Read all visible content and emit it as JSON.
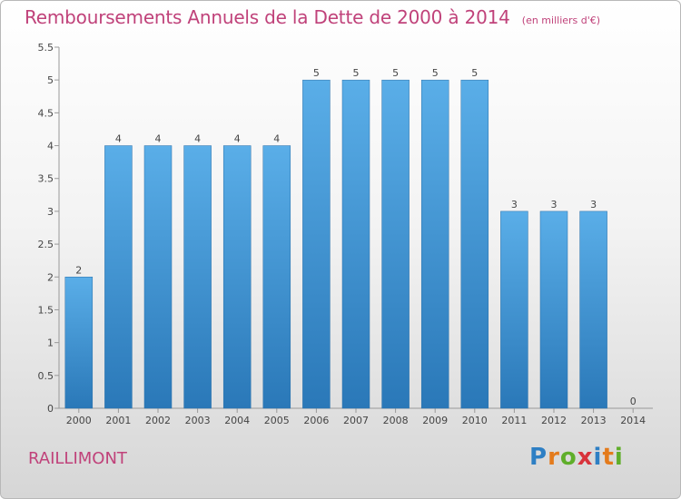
{
  "header": {
    "title": "Remboursements Annuels de la Dette de 2000 à 2014",
    "subtitle": "(en milliers d'€)"
  },
  "footer": {
    "commune": "RAILLIMONT",
    "logo": "Proxiti"
  },
  "colors": {
    "title": "#c0427a",
    "bar_top": "#5aaee8",
    "bar_bottom": "#2a78b8"
  },
  "chart_data": {
    "type": "bar",
    "categories": [
      "2000",
      "2001",
      "2002",
      "2003",
      "2004",
      "2005",
      "2006",
      "2007",
      "2008",
      "2009",
      "2010",
      "2011",
      "2012",
      "2013",
      "2014"
    ],
    "values": [
      2,
      4,
      4,
      4,
      4,
      4,
      5,
      5,
      5,
      5,
      5,
      3,
      3,
      3,
      0
    ],
    "data_labels": [
      "2",
      "4",
      "4",
      "4",
      "4",
      "4",
      "5",
      "5",
      "5",
      "5",
      "5",
      "3",
      "3",
      "3",
      "0"
    ],
    "yticks": [
      0,
      0.5,
      1,
      1.5,
      2,
      2.5,
      3,
      3.5,
      4,
      4.5,
      5,
      5.5
    ],
    "ytick_labels": [
      "0",
      "0.5",
      "1",
      "1.5",
      "2",
      "2.5",
      "3",
      "3.5",
      "4",
      "4.5",
      "5",
      "5.5"
    ],
    "ylim": [
      0,
      5.5
    ],
    "grid": false,
    "legend": "none"
  }
}
